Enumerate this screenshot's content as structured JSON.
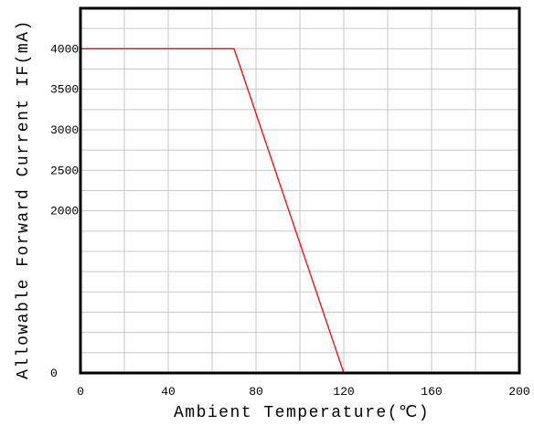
{
  "chart_data": {
    "type": "line",
    "xlabel": "Ambient Temperature(℃)",
    "ylabel": "Allowable Forward Current IF(mA)",
    "xlim": [
      0,
      200
    ],
    "ylim": [
      0,
      4500
    ],
    "x_ticks": [
      "0",
      "40",
      "80",
      "120",
      "160",
      "200"
    ],
    "y_ticks": [
      "0",
      "2000",
      "2500",
      "3000",
      "3500",
      "4000"
    ],
    "grid": true,
    "series": [
      {
        "points": [
          [
            0,
            4000
          ],
          [
            70,
            4000
          ],
          [
            120,
            0
          ]
        ],
        "color": "#ff0000"
      }
    ]
  }
}
